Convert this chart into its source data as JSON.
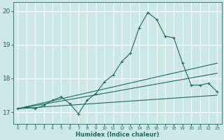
{
  "xlabel": "Humidex (Indice chaleur)",
  "bg_color": "#cce8e8",
  "grid_color": "#ffffff",
  "line_color": "#1e6b5e",
  "xlim": [
    -0.5,
    23.5
  ],
  "ylim": [
    16.65,
    20.25
  ],
  "yticks": [
    17,
    18,
    19,
    20
  ],
  "xticks": [
    0,
    1,
    2,
    3,
    4,
    5,
    6,
    7,
    8,
    9,
    10,
    11,
    12,
    13,
    14,
    15,
    16,
    17,
    18,
    19,
    20,
    21,
    22,
    23
  ],
  "curve_x": [
    0,
    1,
    2,
    3,
    4,
    5,
    6,
    7,
    8,
    9,
    10,
    11,
    12,
    13,
    14,
    15,
    16,
    17,
    18,
    19,
    20,
    21,
    22,
    23
  ],
  "curve_y": [
    17.1,
    17.15,
    17.1,
    17.2,
    17.35,
    17.45,
    17.25,
    16.95,
    17.35,
    17.55,
    17.9,
    18.1,
    18.5,
    18.75,
    19.5,
    19.95,
    19.75,
    19.25,
    19.2,
    18.45,
    17.8,
    17.8,
    17.85,
    17.6
  ],
  "line1_x": [
    0,
    23
  ],
  "line1_y": [
    17.1,
    17.5
  ],
  "line2_x": [
    0,
    23
  ],
  "line2_y": [
    17.1,
    18.15
  ],
  "line3_x": [
    0,
    23
  ],
  "line3_y": [
    17.1,
    18.45
  ]
}
